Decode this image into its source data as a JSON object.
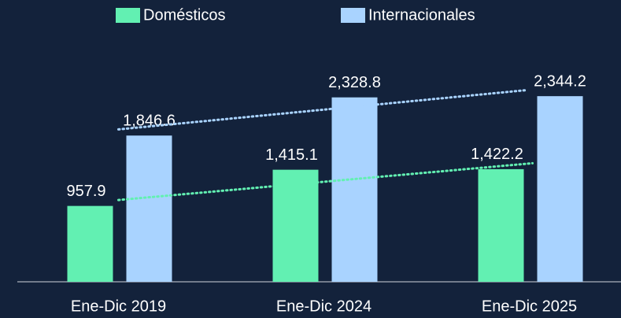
{
  "chart_data": {
    "type": "bar",
    "categories": [
      "Ene-Dic 2019",
      "Ene-Dic 2024",
      "Ene-Dic 2025"
    ],
    "series": [
      {
        "name": "Domésticos",
        "color": "#62f0b2",
        "values": [
          957.9,
          1415.1,
          1422.2
        ],
        "value_labels": [
          "957.9",
          "1,415.1",
          "1,422.2"
        ]
      },
      {
        "name": "Internacionales",
        "color": "#a9d3ff",
        "values": [
          1846.6,
          2328.8,
          2344.2
        ],
        "value_labels": [
          "1,846.6",
          "2,328.8",
          "2,344.2"
        ]
      }
    ],
    "ylim": [
      0,
      3300
    ],
    "trendline": true,
    "legend": "top"
  }
}
